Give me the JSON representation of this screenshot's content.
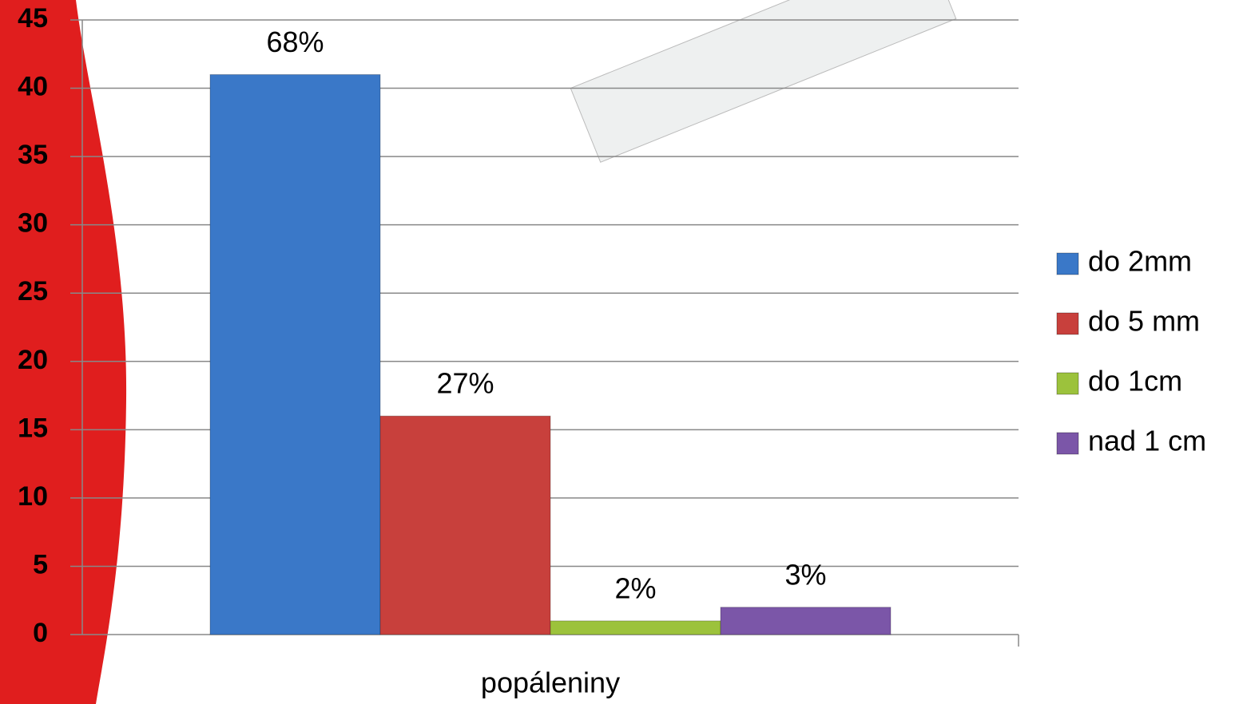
{
  "chart_data": {
    "type": "bar",
    "categories": [
      "popáleniny"
    ],
    "series": [
      {
        "name": "do 2mm",
        "color": "#3a78c8",
        "values": [
          41
        ],
        "value_labels": [
          "68%"
        ]
      },
      {
        "name": "do 5 mm",
        "color": "#c8403c",
        "values": [
          16
        ],
        "value_labels": [
          "27%"
        ]
      },
      {
        "name": "do 1cm",
        "color": "#9cc23c",
        "values": [
          1
        ],
        "value_labels": [
          "2%"
        ]
      },
      {
        "name": "nad 1 cm",
        "color": "#7b56a8",
        "values": [
          2
        ],
        "value_labels": [
          "3%"
        ]
      }
    ],
    "ylim": [
      0,
      45
    ],
    "yticks": [
      0,
      5,
      10,
      15,
      20,
      25,
      30,
      35,
      40,
      45
    ],
    "grid": true,
    "legend": "right"
  }
}
